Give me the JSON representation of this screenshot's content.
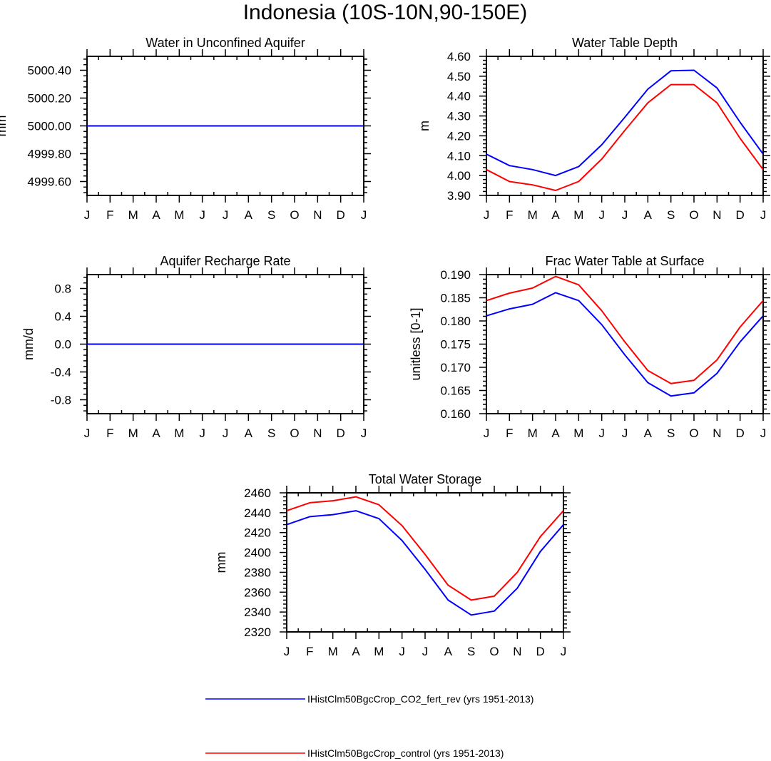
{
  "figure": {
    "title": "Indonesia (10S-10N,90-150E)"
  },
  "legend": {
    "entries": [
      {
        "label": "IHistClm50BgcCrop_CO2_fert_rev (yrs 1951-2013)",
        "color": "#0000ff"
      },
      {
        "label": "IHistClm50BgcCrop_control (yrs 1951-2013)",
        "color": "#ff0000"
      }
    ]
  },
  "chart_data": [
    {
      "type": "line",
      "title": "Water in Unconfined Aquifer",
      "xlabel": "",
      "ylabel": "mm",
      "x_ticks": [
        "J",
        "F",
        "M",
        "A",
        "M",
        "J",
        "J",
        "A",
        "S",
        "O",
        "N",
        "D",
        "J"
      ],
      "ylim": [
        4999.5,
        5000.5
      ],
      "y_ticks": [
        4999.6,
        4999.8,
        5000.0,
        5000.2,
        5000.4
      ],
      "y_tick_labels": [
        "4999.60",
        "4999.80",
        "5000.00",
        "5000.20",
        "5000.40"
      ],
      "series": [
        {
          "color": "#ff0000",
          "values": [
            5000,
            5000,
            5000,
            5000,
            5000,
            5000,
            5000,
            5000,
            5000,
            5000,
            5000,
            5000,
            5000
          ]
        },
        {
          "color": "#0000ff",
          "values": [
            5000,
            5000,
            5000,
            5000,
            5000,
            5000,
            5000,
            5000,
            5000,
            5000,
            5000,
            5000,
            5000
          ]
        }
      ]
    },
    {
      "type": "line",
      "title": "Water Table Depth",
      "xlabel": "",
      "ylabel": "m",
      "x_ticks": [
        "J",
        "F",
        "M",
        "A",
        "M",
        "J",
        "J",
        "A",
        "S",
        "O",
        "N",
        "D",
        "J"
      ],
      "ylim": [
        3.9,
        4.6
      ],
      "y_ticks": [
        3.9,
        4.0,
        4.1,
        4.2,
        4.3,
        4.4,
        4.5,
        4.6
      ],
      "y_tick_labels": [
        "3.90",
        "4.00",
        "4.10",
        "4.20",
        "4.30",
        "4.40",
        "4.50",
        "4.60"
      ],
      "series": [
        {
          "color": "#0000ff",
          "values": [
            4.108,
            4.05,
            4.03,
            4.0,
            4.045,
            4.155,
            4.293,
            4.435,
            4.527,
            4.53,
            4.441,
            4.268,
            4.108
          ]
        },
        {
          "color": "#ff0000",
          "values": [
            4.03,
            3.97,
            3.953,
            3.925,
            3.97,
            4.083,
            4.227,
            4.366,
            4.458,
            4.458,
            4.366,
            4.187,
            4.03
          ]
        }
      ]
    },
    {
      "type": "line",
      "title": "Aquifer Recharge Rate",
      "xlabel": "",
      "ylabel": "mm/d",
      "x_ticks": [
        "J",
        "F",
        "M",
        "A",
        "M",
        "J",
        "J",
        "A",
        "S",
        "O",
        "N",
        "D",
        "J"
      ],
      "ylim": [
        -1.0,
        1.0
      ],
      "y_ticks": [
        -0.8,
        -0.4,
        0.0,
        0.4,
        0.8
      ],
      "y_tick_labels": [
        "-0.8",
        "-0.4",
        "0.0",
        "0.4",
        "0.8"
      ],
      "series": [
        {
          "color": "#ff0000",
          "values": [
            0,
            0,
            0,
            0,
            0,
            0,
            0,
            0,
            0,
            0,
            0,
            0,
            0
          ]
        },
        {
          "color": "#0000ff",
          "values": [
            0,
            0,
            0,
            0,
            0,
            0,
            0,
            0,
            0,
            0,
            0,
            0,
            0
          ]
        }
      ]
    },
    {
      "type": "line",
      "title": "Frac Water Table at Surface",
      "xlabel": "",
      "ylabel": "unitless [0-1]",
      "x_ticks": [
        "J",
        "F",
        "M",
        "A",
        "M",
        "J",
        "J",
        "A",
        "S",
        "O",
        "N",
        "D",
        "J"
      ],
      "ylim": [
        0.16,
        0.19
      ],
      "y_ticks": [
        0.16,
        0.165,
        0.17,
        0.175,
        0.18,
        0.185,
        0.19
      ],
      "y_tick_labels": [
        "0.160",
        "0.165",
        "0.170",
        "0.175",
        "0.180",
        "0.185",
        "0.190"
      ],
      "series": [
        {
          "color": "#0000ff",
          "values": [
            0.1811,
            0.1826,
            0.1836,
            0.1861,
            0.1844,
            0.1792,
            0.1727,
            0.1667,
            0.1638,
            0.1645,
            0.1687,
            0.1755,
            0.1811
          ]
        },
        {
          "color": "#ff0000",
          "values": [
            0.1844,
            0.186,
            0.1871,
            0.1896,
            0.1878,
            0.1822,
            0.1755,
            0.1693,
            0.1665,
            0.1672,
            0.1716,
            0.1787,
            0.1844
          ]
        }
      ]
    },
    {
      "type": "line",
      "title": "Total Water Storage",
      "xlabel": "",
      "ylabel": "mm",
      "x_ticks": [
        "J",
        "F",
        "M",
        "A",
        "M",
        "J",
        "J",
        "A",
        "S",
        "O",
        "N",
        "D",
        "J"
      ],
      "ylim": [
        2320,
        2460
      ],
      "y_ticks": [
        2320,
        2340,
        2360,
        2380,
        2400,
        2420,
        2440,
        2460
      ],
      "y_tick_labels": [
        "2320",
        "2340",
        "2360",
        "2380",
        "2400",
        "2420",
        "2440",
        "2460"
      ],
      "series": [
        {
          "color": "#0000ff",
          "values": [
            2428,
            2436,
            2438,
            2442,
            2434,
            2412,
            2383,
            2352,
            2337,
            2341,
            2364,
            2401,
            2428
          ]
        },
        {
          "color": "#ff0000",
          "values": [
            2442,
            2450,
            2452,
            2456,
            2448,
            2427,
            2398,
            2367,
            2352,
            2356,
            2380,
            2416,
            2442
          ]
        }
      ]
    }
  ]
}
